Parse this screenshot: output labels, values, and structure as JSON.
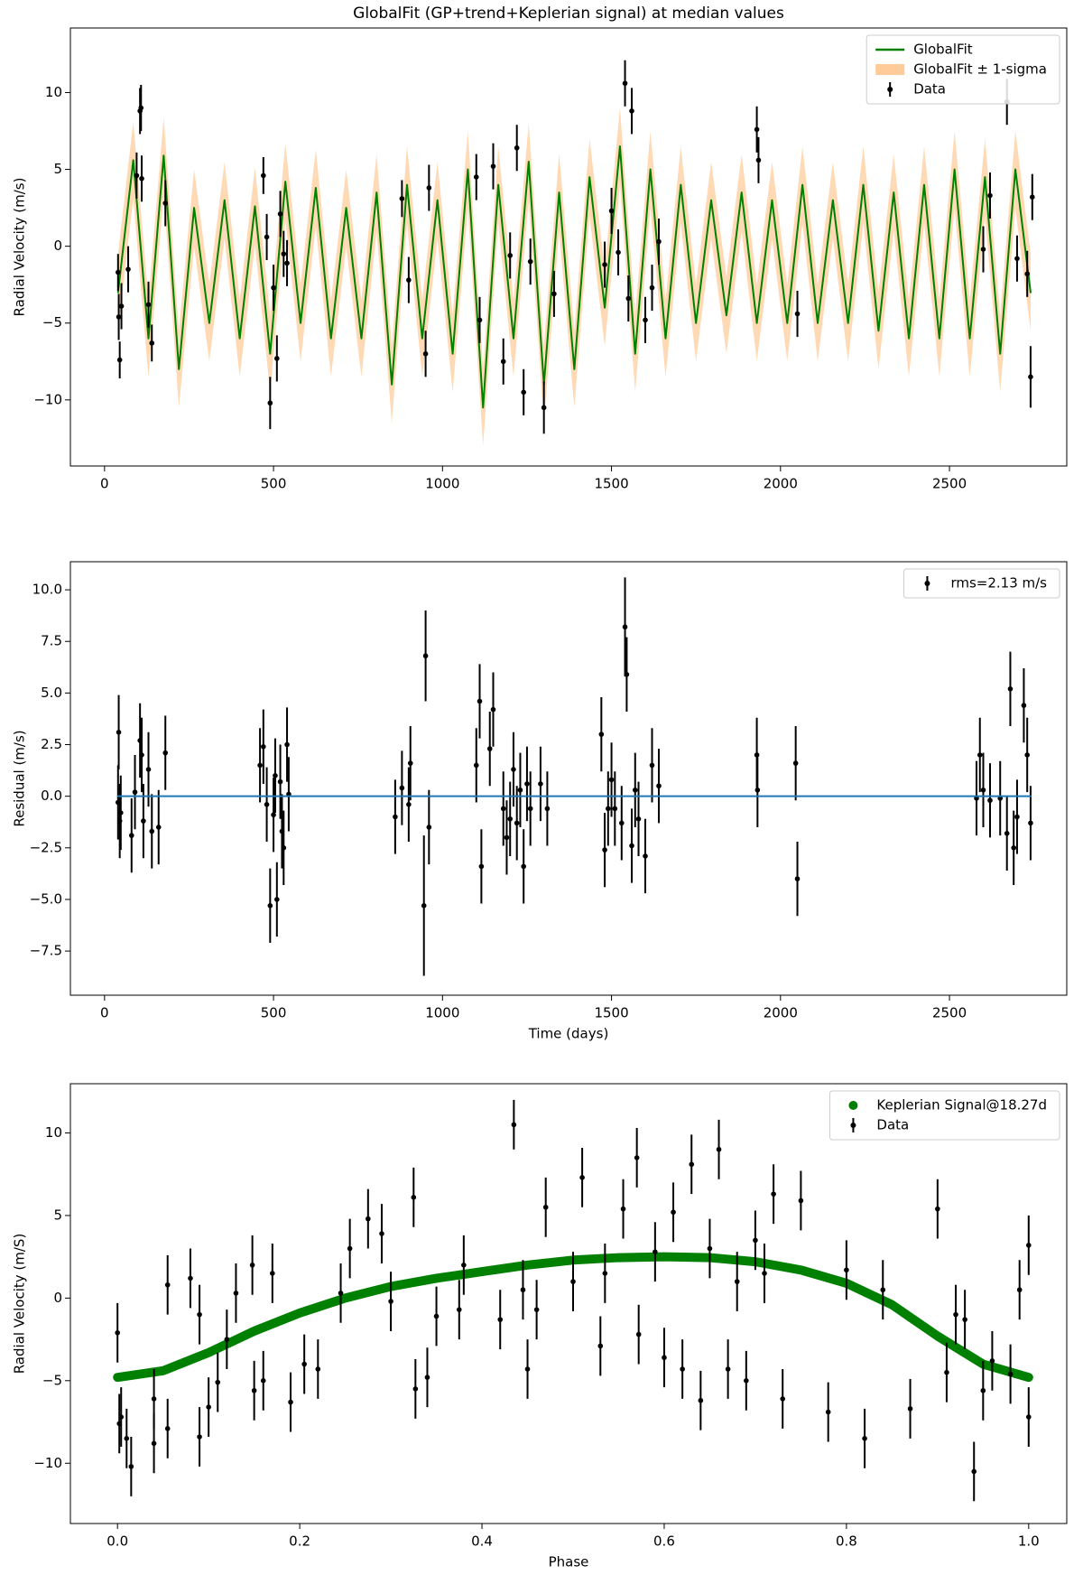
{
  "chart_data": [
    {
      "type": "line",
      "title": "GlobalFit (GP+trend+Keplerian signal) at median values",
      "y_label": "Radial Velocity (m/s)",
      "xlim": [
        -101,
        2847
      ],
      "ylim": [
        -14.3,
        14.2
      ],
      "xticks": [
        0,
        500,
        1000,
        1500,
        2000,
        2500
      ],
      "yticks": [
        {
          "value": -10,
          "label": "−10"
        },
        {
          "value": -5,
          "label": "−5"
        },
        0,
        5,
        10
      ],
      "legend": "upper right",
      "series": [
        {
          "name": "GlobalFit",
          "color": "#008000",
          "style": "line",
          "x": [
            40,
            85,
            130,
            175,
            220,
            265,
            310,
            355,
            400,
            445,
            490,
            535,
            580,
            625,
            670,
            715,
            760,
            805,
            850,
            895,
            940,
            985,
            1030,
            1075,
            1120,
            1165,
            1210,
            1255,
            1300,
            1345,
            1390,
            1435,
            1480,
            1525,
            1570,
            1615,
            1660,
            1705,
            1750,
            1795,
            1840,
            1885,
            1930,
            1975,
            2020,
            2065,
            2110,
            2155,
            2200,
            2245,
            2290,
            2335,
            2380,
            2425,
            2470,
            2515,
            2560,
            2605,
            2650,
            2695,
            2740
          ],
          "values": [
            -3,
            5.6,
            -6,
            5.9,
            -8,
            2.5,
            -5,
            3,
            -6,
            2.6,
            -7,
            4.2,
            -5,
            3.8,
            -6,
            2.5,
            -6,
            3.5,
            -9,
            4,
            -6,
            3,
            -7,
            5,
            -10.5,
            4,
            -6,
            5.5,
            -9,
            3.5,
            -8,
            4.5,
            -4,
            6.5,
            -7,
            5,
            -6,
            4,
            -5,
            3,
            -4.5,
            3.5,
            -5,
            3,
            -5,
            4,
            -5,
            3,
            -5,
            4,
            -5.5,
            3.5,
            -6,
            4,
            -6,
            5,
            -6,
            4.5,
            -7,
            5,
            -3
          ]
        },
        {
          "name": "GlobalFit ± 1-sigma",
          "color": "#ffcc99",
          "style": "band",
          "sigma": 2.5
        },
        {
          "name": "Data",
          "color": "#000000",
          "style": "errorbar",
          "x": [
            40,
            42,
            45,
            50,
            70,
            95,
            105,
            108,
            110,
            130,
            140,
            180,
            470,
            480,
            490,
            500,
            510,
            520,
            530,
            540,
            880,
            900,
            950,
            960,
            1100,
            1110,
            1150,
            1180,
            1200,
            1220,
            1240,
            1260,
            1300,
            1330,
            1480,
            1500,
            1520,
            1540,
            1550,
            1560,
            1600,
            1620,
            1640,
            1930,
            1935,
            2050,
            2600,
            2620,
            2670,
            2700,
            2730,
            2740,
            2745
          ],
          "values": [
            -1.7,
            -4.6,
            -7.4,
            -3.9,
            -1.5,
            4.6,
            8.8,
            9.0,
            4.4,
            -3.8,
            -6.3,
            2.8,
            4.6,
            0.6,
            -10.2,
            -2.7,
            -7.3,
            2.1,
            -0.5,
            -1.1,
            3.1,
            -2.2,
            -7.0,
            3.8,
            4.5,
            -4.8,
            5.2,
            -7.5,
            -0.6,
            6.4,
            -9.5,
            -1.0,
            -10.5,
            -3.1,
            -1.2,
            2.3,
            -0.4,
            10.6,
            -3.4,
            8.8,
            -4.8,
            -2.7,
            0.3,
            7.6,
            5.6,
            -4.4,
            -0.2,
            3.3,
            9.4,
            -0.8,
            -1.8,
            -8.5,
            3.2
          ],
          "errors": [
            1.2,
            1.5,
            1.2,
            1.5,
            1.5,
            1.5,
            1.5,
            1.5,
            1.5,
            1.5,
            1.2,
            1.5,
            1.2,
            1.5,
            1.7,
            1.5,
            1.5,
            1.5,
            1.5,
            1.5,
            1.2,
            1.5,
            1.5,
            1.5,
            1.5,
            1.5,
            1.5,
            1.5,
            1.5,
            1.5,
            1.5,
            1.5,
            1.7,
            1.5,
            1.5,
            1.5,
            1.5,
            1.5,
            1.5,
            1.5,
            1.5,
            1.5,
            1.5,
            1.5,
            1.5,
            1.5,
            1.5,
            1.5,
            1.5,
            1.5,
            1.5,
            2.0,
            1.5
          ]
        }
      ]
    },
    {
      "type": "scatter",
      "x_label": "Time (days)",
      "y_label": "Residual (m/s)",
      "xlim": [
        -101,
        2847
      ],
      "ylim": [
        -9.64,
        11.36
      ],
      "xticks": [
        0,
        500,
        1000,
        1500,
        2000,
        2500
      ],
      "yticks": [
        {
          "value": -7.5,
          "label": "−7.5"
        },
        {
          "value": -5,
          "label": "−5.0"
        },
        {
          "value": -2.5,
          "label": "−2.5"
        },
        {
          "value": 0,
          "label": "0.0"
        },
        2.5,
        {
          "value": 5,
          "label": "5.0"
        },
        7.5,
        {
          "value": 10,
          "label": "10.0"
        }
      ],
      "legend": "upper right",
      "series": [
        {
          "name": "rms=2.13 m/s",
          "color": "#000000",
          "style": "errorbar",
          "x": [
            40,
            42,
            45,
            48,
            80,
            90,
            105,
            110,
            115,
            130,
            140,
            160,
            180,
            460,
            470,
            480,
            490,
            500,
            505,
            510,
            520,
            525,
            530,
            540,
            545,
            860,
            880,
            900,
            905,
            945,
            950,
            960,
            1100,
            1110,
            1115,
            1140,
            1150,
            1180,
            1190,
            1200,
            1210,
            1220,
            1230,
            1240,
            1250,
            1260,
            1290,
            1310,
            1470,
            1480,
            1490,
            1500,
            1510,
            1530,
            1540,
            1545,
            1560,
            1570,
            1580,
            1600,
            1620,
            1640,
            1930,
            1932,
            2045,
            2050,
            2580,
            2590,
            2600,
            2620,
            2650,
            2670,
            2680,
            2690,
            2700,
            2720,
            2730,
            2740
          ],
          "values": [
            -0.3,
            3.1,
            -1.2,
            -0.8,
            -1.9,
            0.2,
            2.7,
            2.0,
            -1.2,
            1.3,
            -1.7,
            -1.5,
            2.1,
            1.5,
            2.4,
            -0.4,
            -5.3,
            -0.9,
            1.0,
            -5.0,
            0.7,
            -1.7,
            -2.5,
            2.5,
            0.1,
            -1.0,
            0.4,
            -0.4,
            1.6,
            -5.3,
            6.8,
            -1.5,
            1.5,
            4.6,
            -3.4,
            2.3,
            4.2,
            -0.6,
            -2.0,
            -1.1,
            1.3,
            -1.3,
            0.3,
            -3.4,
            0.6,
            -0.6,
            0.6,
            -0.6,
            3.0,
            -2.6,
            -0.6,
            0.8,
            -0.6,
            -1.3,
            8.2,
            5.9,
            -2.4,
            0.3,
            -1.1,
            -2.9,
            1.5,
            0.5,
            2.0,
            0.3,
            1.6,
            -4.0,
            -0.1,
            2.0,
            0.3,
            -0.2,
            -0.1,
            -1.8,
            5.2,
            -2.5,
            -1.0,
            4.4,
            2.0,
            -1.3
          ],
          "errors": [
            1.8,
            1.8,
            1.8,
            1.8,
            1.8,
            1.8,
            1.8,
            1.8,
            1.8,
            1.8,
            1.8,
            1.8,
            1.8,
            1.8,
            1.8,
            1.8,
            1.8,
            1.8,
            1.8,
            1.8,
            1.8,
            1.8,
            1.8,
            1.8,
            1.8,
            1.8,
            1.8,
            1.8,
            1.8,
            3.4,
            2.2,
            1.8,
            1.8,
            1.8,
            1.8,
            1.8,
            1.8,
            1.8,
            1.8,
            1.8,
            1.8,
            1.8,
            1.8,
            1.8,
            1.8,
            1.8,
            1.8,
            1.8,
            1.8,
            1.8,
            1.8,
            1.8,
            1.8,
            1.8,
            2.4,
            1.8,
            1.8,
            1.8,
            1.8,
            1.8,
            1.8,
            1.8,
            1.8,
            1.8,
            1.8,
            1.8,
            1.8,
            1.8,
            1.8,
            1.8,
            1.8,
            1.8,
            1.8,
            1.8,
            1.8,
            1.8,
            1.8,
            1.8
          ]
        },
        {
          "color": "#1f77b4",
          "style": "line",
          "x": [
            40,
            2740
          ],
          "values": [
            0,
            0
          ]
        }
      ]
    },
    {
      "type": "scatter",
      "x_label": "Phase",
      "y_label": "Radial Velocity (m/S)",
      "xlim": [
        -0.0517,
        1.0418
      ],
      "ylim": [
        -13.65,
        12.98
      ],
      "xticks": [
        {
          "value": 0,
          "label": "0.0"
        },
        0.2,
        0.4,
        0.6,
        0.8,
        {
          "value": 1,
          "label": "1.0"
        }
      ],
      "yticks": [
        {
          "value": -10,
          "label": "−10"
        },
        {
          "value": -5,
          "label": "−5"
        },
        0,
        5,
        10
      ],
      "legend": "upper right",
      "series": [
        {
          "name": "Keplerian Signal@18.27d",
          "color": "#008000",
          "style": "dots",
          "x": [
            0,
            0.05,
            0.1,
            0.15,
            0.2,
            0.25,
            0.3,
            0.35,
            0.4,
            0.45,
            0.5,
            0.55,
            0.6,
            0.65,
            0.7,
            0.75,
            0.8,
            0.85,
            0.9,
            0.95,
            1.0
          ],
          "values": [
            -4.8,
            -4.4,
            -3.3,
            -2.0,
            -0.9,
            0.0,
            0.7,
            1.2,
            1.6,
            2.0,
            2.3,
            2.45,
            2.5,
            2.45,
            2.2,
            1.7,
            0.9,
            -0.4,
            -2.3,
            -4.0,
            -4.8
          ]
        },
        {
          "name": "Data",
          "color": "#000000",
          "style": "errorbar",
          "x": [
            0.0,
            0.002,
            0.004,
            0.01,
            0.015,
            0.04,
            0.04,
            0.055,
            0.055,
            0.08,
            0.09,
            0.09,
            0.1,
            0.11,
            0.12,
            0.13,
            0.148,
            0.15,
            0.16,
            0.17,
            0.19,
            0.205,
            0.22,
            0.245,
            0.255,
            0.275,
            0.29,
            0.3,
            0.325,
            0.327,
            0.34,
            0.35,
            0.375,
            0.38,
            0.42,
            0.435,
            0.445,
            0.45,
            0.46,
            0.47,
            0.5,
            0.51,
            0.53,
            0.535,
            0.555,
            0.57,
            0.572,
            0.59,
            0.6,
            0.61,
            0.62,
            0.63,
            0.64,
            0.65,
            0.66,
            0.67,
            0.68,
            0.69,
            0.7,
            0.71,
            0.72,
            0.73,
            0.75,
            0.78,
            0.8,
            0.82,
            0.84,
            0.87,
            0.9,
            0.91,
            0.92,
            0.93,
            0.94,
            0.95,
            0.96,
            0.98,
            0.99,
            1.0,
            1.0
          ],
          "values": [
            -2.1,
            -7.6,
            -7.2,
            -8.5,
            -10.2,
            -6.1,
            -8.8,
            -7.9,
            0.8,
            1.2,
            -1.0,
            -8.4,
            -6.6,
            -5.1,
            -2.5,
            0.3,
            2.0,
            -5.6,
            -5.0,
            1.5,
            -6.3,
            -4.0,
            -4.3,
            0.3,
            3.0,
            4.8,
            3.9,
            -0.2,
            6.1,
            -5.5,
            -4.8,
            -1.1,
            -0.7,
            2.0,
            -1.3,
            10.5,
            0.5,
            -4.3,
            -0.7,
            5.5,
            1.0,
            7.3,
            -2.9,
            1.5,
            5.4,
            8.5,
            -2.2,
            2.8,
            -3.6,
            5.2,
            -4.3,
            8.1,
            -6.2,
            3.0,
            9.0,
            -4.3,
            1.0,
            -5.0,
            3.5,
            1.5,
            6.3,
            -6.1,
            5.9,
            -6.9,
            1.7,
            -8.5,
            0.5,
            -6.7,
            5.4,
            -4.5,
            -1.0,
            -1.3,
            -10.5,
            -5.6,
            -3.8,
            -4.6,
            0.5,
            3.2,
            -7.2
          ],
          "errors": [
            1.8,
            1.8,
            1.8,
            1.8,
            1.8,
            1.8,
            1.8,
            1.8,
            1.8,
            1.8,
            1.8,
            1.8,
            1.8,
            1.8,
            1.8,
            1.8,
            1.8,
            1.8,
            1.8,
            1.8,
            1.8,
            1.8,
            1.8,
            1.8,
            1.8,
            1.8,
            1.8,
            1.8,
            1.8,
            1.8,
            1.8,
            1.8,
            1.8,
            1.8,
            1.8,
            1.5,
            1.8,
            1.8,
            1.8,
            1.8,
            1.8,
            1.8,
            1.8,
            1.8,
            1.8,
            1.8,
            1.8,
            1.8,
            1.8,
            1.8,
            1.8,
            1.8,
            1.8,
            1.8,
            1.8,
            1.8,
            1.8,
            1.8,
            1.8,
            1.8,
            1.8,
            1.8,
            1.8,
            1.8,
            1.8,
            1.8,
            1.8,
            1.8,
            1.8,
            1.8,
            1.8,
            1.8,
            1.8,
            1.8,
            1.8,
            1.8,
            1.8,
            1.8,
            1.8
          ]
        }
      ]
    }
  ]
}
